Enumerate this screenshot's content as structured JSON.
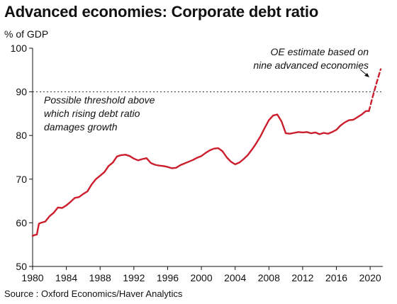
{
  "chart_data": {
    "type": "line",
    "title": "Advanced economies: Corporate debt ratio",
    "ylabel": "% of GDP",
    "source": "Source : Oxford Economics/Haver Analytics",
    "xlim": [
      1980,
      2021.5
    ],
    "ylim": [
      50,
      100
    ],
    "x_ticks": [
      "1980",
      "1984",
      "1988",
      "1992",
      "1996",
      "2000",
      "2004",
      "2008",
      "2012",
      "2016",
      "2020"
    ],
    "y_ticks": [
      "50",
      "60",
      "70",
      "80",
      "90",
      "100"
    ],
    "threshold": {
      "value": 90,
      "label_lines": [
        "Possible threshold above",
        "which rising debt ratio",
        "damages growth"
      ]
    },
    "estimate_note_lines": [
      "OE estimate based on",
      "nine advanced economies"
    ],
    "series": [
      {
        "style": "solid",
        "color": "#cc1f2d",
        "x": [
          1980.0,
          1980.25,
          1980.5,
          1980.75,
          1981.0,
          1981.5,
          1982.0,
          1982.5,
          1983.0,
          1983.5,
          1984.0,
          1984.5,
          1985.0,
          1985.5,
          1986.0,
          1986.5,
          1987.0,
          1987.5,
          1988.0,
          1988.5,
          1989.0,
          1989.5,
          1990.0,
          1990.5,
          1991.0,
          1991.5,
          1992.0,
          1992.5,
          1993.0,
          1993.5,
          1994.0,
          1994.5,
          1995.0,
          1995.5,
          1996.0,
          1996.5,
          1997.0,
          1997.5,
          1998.0,
          1998.5,
          1999.0,
          1999.5,
          2000.0,
          2000.5,
          2001.0,
          2001.5,
          2002.0,
          2002.5,
          2003.0,
          2003.5,
          2004.0,
          2004.5,
          2005.0,
          2005.5,
          2006.0,
          2006.5,
          2007.0,
          2007.5,
          2008.0,
          2008.5,
          2009.0,
          2009.5,
          2010.0,
          2010.5,
          2011.0,
          2011.5,
          2012.0,
          2012.5,
          2013.0,
          2013.5,
          2014.0,
          2014.5,
          2015.0,
          2015.5,
          2016.0,
          2016.5,
          2017.0,
          2017.5,
          2018.0,
          2018.5,
          2019.0,
          2019.5,
          2019.85
        ],
        "values": [
          57.0,
          57.2,
          57.3,
          59.8,
          60.0,
          60.3,
          61.5,
          62.3,
          63.5,
          63.4,
          64.0,
          64.8,
          65.7,
          65.9,
          66.6,
          67.2,
          68.8,
          70.0,
          70.8,
          71.6,
          73.0,
          73.8,
          75.2,
          75.5,
          75.6,
          75.3,
          74.7,
          74.3,
          74.6,
          74.8,
          73.7,
          73.3,
          73.1,
          73.0,
          72.8,
          72.5,
          72.6,
          73.2,
          73.6,
          74.0,
          74.4,
          74.9,
          75.3,
          76.0,
          76.6,
          77.0,
          77.1,
          76.4,
          75.0,
          74.0,
          73.4,
          73.8,
          74.6,
          75.5,
          76.8,
          78.2,
          79.8,
          81.7,
          83.5,
          84.6,
          84.8,
          83.2,
          80.5,
          80.4,
          80.6,
          80.8,
          80.7,
          80.8,
          80.5,
          80.7,
          80.3,
          80.6,
          80.4,
          80.8,
          81.3,
          82.3,
          83.0,
          83.5,
          83.6,
          84.2,
          84.8,
          85.6,
          85.6
        ]
      },
      {
        "style": "dashed",
        "color": "#cc1f2d",
        "x": [
          2019.85,
          2020.25,
          2020.75,
          2021.25
        ],
        "values": [
          85.6,
          88.5,
          92.0,
          95.2
        ]
      }
    ],
    "grid": false
  }
}
